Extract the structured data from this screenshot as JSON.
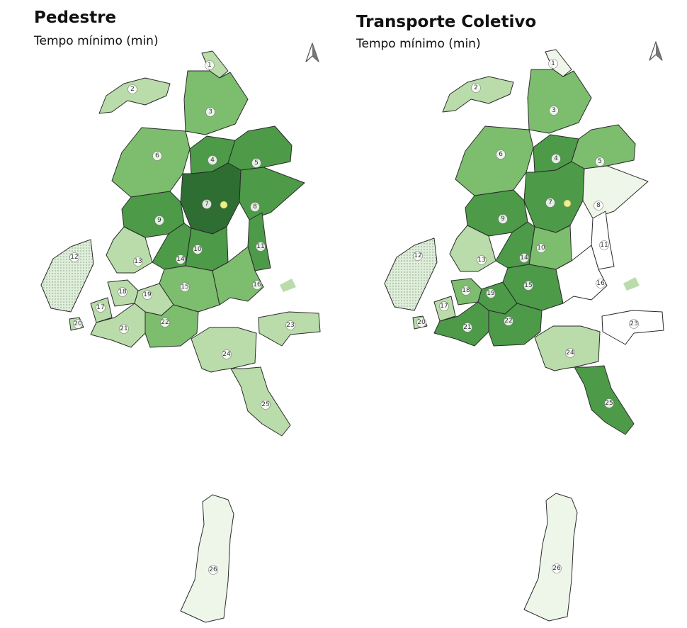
{
  "panels": [
    {
      "title": "Pedestre",
      "subtitle": "Tempo mínimo (min)",
      "north_icon": "north-arrow-icon",
      "zones": [
        {
          "id": "1",
          "shade": "light"
        },
        {
          "id": "2",
          "shade": "light"
        },
        {
          "id": "3",
          "shade": "medium"
        },
        {
          "id": "4",
          "shade": "dark"
        },
        {
          "id": "5",
          "shade": "dark"
        },
        {
          "id": "6",
          "shade": "medium"
        },
        {
          "id": "7",
          "shade": "darkest"
        },
        {
          "id": "8",
          "shade": "dark"
        },
        {
          "id": "9",
          "shade": "dark"
        },
        {
          "id": "10",
          "shade": "dark"
        },
        {
          "id": "11",
          "shade": "dark"
        },
        {
          "id": "12",
          "shade": "pattern"
        },
        {
          "id": "13",
          "shade": "light"
        },
        {
          "id": "14",
          "shade": "dark"
        },
        {
          "id": "15",
          "shade": "medium"
        },
        {
          "id": "16",
          "shade": "medium"
        },
        {
          "id": "17",
          "shade": "light"
        },
        {
          "id": "18",
          "shade": "light"
        },
        {
          "id": "19",
          "shade": "light"
        },
        {
          "id": "20",
          "shade": "light"
        },
        {
          "id": "21",
          "shade": "light"
        },
        {
          "id": "22",
          "shade": "medium"
        },
        {
          "id": "23",
          "shade": "light"
        },
        {
          "id": "24",
          "shade": "light"
        },
        {
          "id": "25",
          "shade": "light"
        },
        {
          "id": "26",
          "shade": "pale"
        }
      ]
    },
    {
      "title": "Transporte Coletivo",
      "subtitle": "Tempo mínimo (min)",
      "north_icon": "north-arrow-icon",
      "zones": [
        {
          "id": "1",
          "shade": "pale"
        },
        {
          "id": "2",
          "shade": "light"
        },
        {
          "id": "3",
          "shade": "medium"
        },
        {
          "id": "4",
          "shade": "dark"
        },
        {
          "id": "5",
          "shade": "medium"
        },
        {
          "id": "6",
          "shade": "medium"
        },
        {
          "id": "7",
          "shade": "dark"
        },
        {
          "id": "8",
          "shade": "pale"
        },
        {
          "id": "9",
          "shade": "dark"
        },
        {
          "id": "10",
          "shade": "medium"
        },
        {
          "id": "11",
          "shade": "white"
        },
        {
          "id": "12",
          "shade": "pattern"
        },
        {
          "id": "13",
          "shade": "light"
        },
        {
          "id": "14",
          "shade": "dark"
        },
        {
          "id": "15",
          "shade": "dark"
        },
        {
          "id": "16",
          "shade": "white"
        },
        {
          "id": "17",
          "shade": "light"
        },
        {
          "id": "18",
          "shade": "medium"
        },
        {
          "id": "19",
          "shade": "dark"
        },
        {
          "id": "20",
          "shade": "light"
        },
        {
          "id": "21",
          "shade": "dark"
        },
        {
          "id": "22",
          "shade": "dark"
        },
        {
          "id": "23",
          "shade": "white"
        },
        {
          "id": "24",
          "shade": "light"
        },
        {
          "id": "25",
          "shade": "dark"
        },
        {
          "id": "26",
          "shade": "pale"
        }
      ]
    }
  ],
  "colors": {
    "white": "#ffffff",
    "pale": "#eef6ea",
    "light": "#b9dcaa",
    "medium": "#7cbd6e",
    "dark": "#4d9a48",
    "darkest": "#2f6e32",
    "pattern": "#dfeeda",
    "boundary": "#2a2a2a",
    "center_marker": "#eef27a"
  }
}
